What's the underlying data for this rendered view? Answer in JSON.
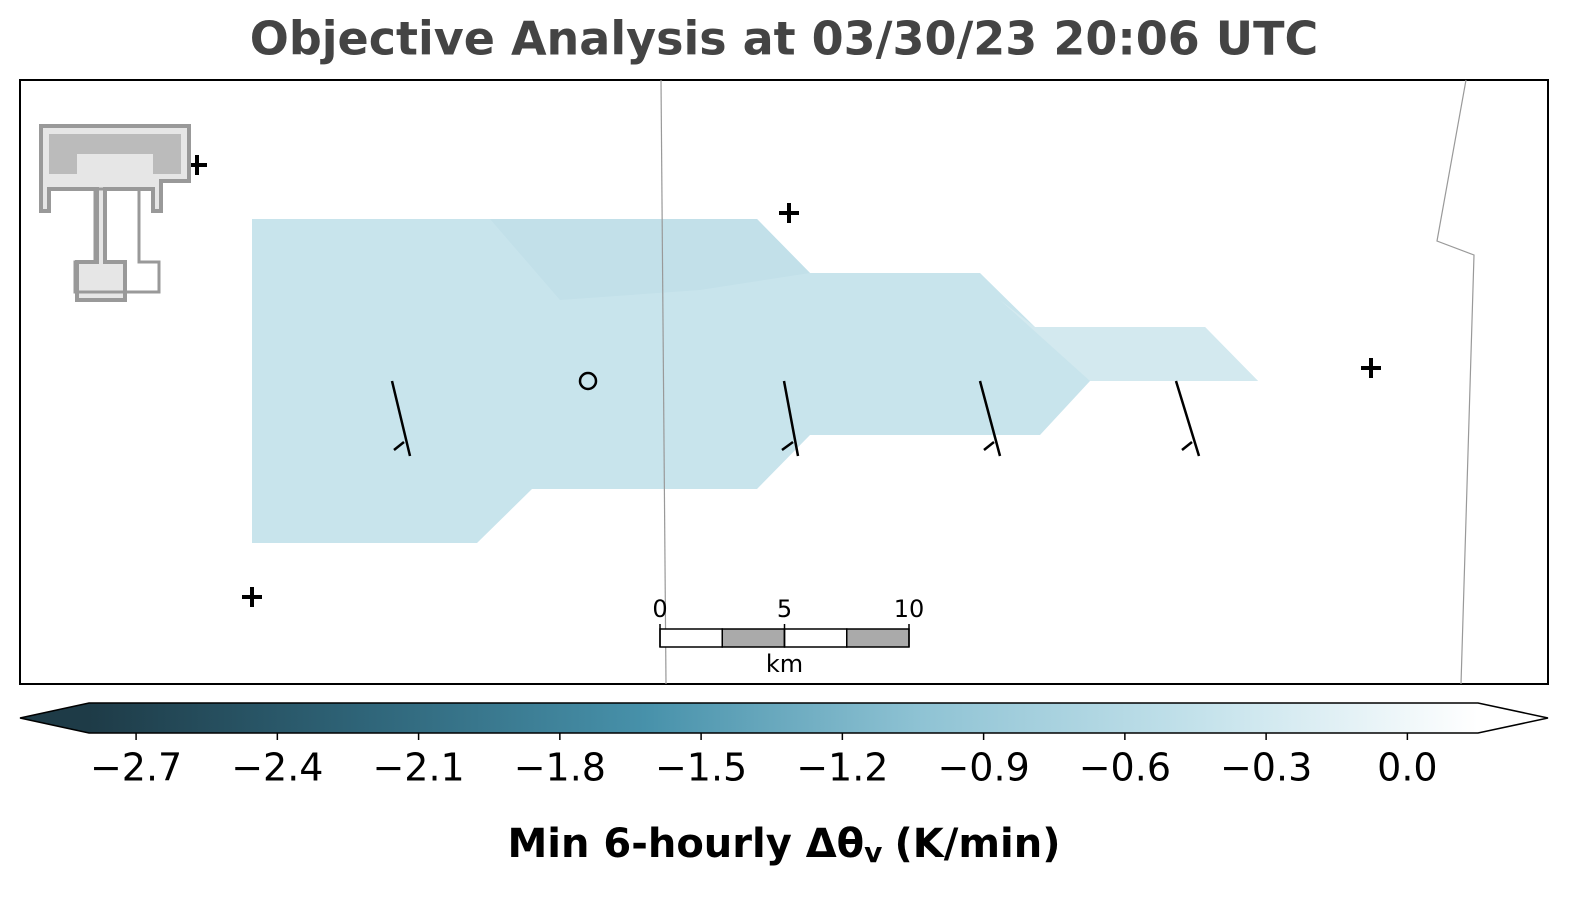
{
  "title": "Objective Analysis at 03/30/23 20:06 UTC",
  "colorbar": {
    "clim": [
      -2.8,
      0.15
    ],
    "extend": "both",
    "colormap": [
      "#1e3b47",
      "#2f6579",
      "#4791aa",
      "#8fc3d4",
      "#c4e2eb",
      "#ffffff"
    ],
    "ticks": [
      {
        "value": -2.7,
        "label": "−2.7"
      },
      {
        "value": -2.4,
        "label": "−2.4"
      },
      {
        "value": -2.1,
        "label": "−2.1"
      },
      {
        "value": -1.8,
        "label": "−1.8"
      },
      {
        "value": -1.5,
        "label": "−1.5"
      },
      {
        "value": -1.2,
        "label": "−1.2"
      },
      {
        "value": -0.9,
        "label": "−0.9"
      },
      {
        "value": -0.6,
        "label": "−0.6"
      },
      {
        "value": -0.3,
        "label": "−0.3"
      },
      {
        "value": 0,
        "label": "0.0"
      }
    ],
    "label_main": "Min 6-hourly Δθ",
    "label_sub": "v",
    "label_unit": "(K/min)"
  },
  "scale_bar": {
    "ticks": [
      0,
      5,
      10
    ],
    "unit": "km"
  }
}
